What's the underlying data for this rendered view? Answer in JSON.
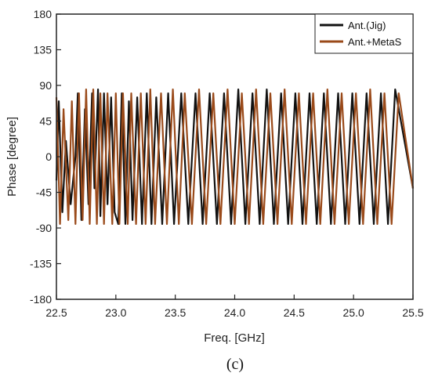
{
  "chart_data": {
    "type": "line",
    "xlabel": "Freq. [GHz]",
    "ylabel": "Phase [degree]",
    "caption": "(c)",
    "xlim": [
      22.5,
      25.5
    ],
    "ylim": [
      -180,
      180
    ],
    "xticks": [
      "22.5",
      "23.0",
      "23.5",
      "24.0",
      "24.5",
      "25.0",
      "25.5"
    ],
    "yticks": [
      "180",
      "135",
      "90",
      "45",
      "0",
      "-45",
      "-90",
      "-135",
      "-180"
    ],
    "grid": false,
    "legend_position": "top-right",
    "series": [
      {
        "name": "Ant.(Jig)",
        "color": "#111111",
        "x": [
          22.5,
          22.52,
          22.55,
          22.58,
          22.62,
          22.66,
          22.68,
          22.71,
          22.74,
          22.77,
          22.8,
          22.82,
          22.85,
          22.87,
          22.9,
          22.93,
          22.96,
          22.99,
          23.02,
          23.05,
          23.08,
          23.11,
          23.14,
          23.18,
          23.22,
          23.26,
          23.3,
          23.34,
          23.39,
          23.44,
          23.49,
          23.55,
          23.61,
          23.67,
          23.73,
          23.79,
          23.85,
          23.91,
          23.97,
          24.03,
          24.09,
          24.15,
          24.21,
          24.27,
          24.33,
          24.39,
          24.45,
          24.51,
          24.57,
          24.63,
          24.69,
          24.75,
          24.81,
          24.87,
          24.93,
          24.99,
          25.05,
          25.11,
          25.17,
          25.23,
          25.29,
          25.35,
          25.5
        ],
        "y": [
          -30,
          70,
          -70,
          20,
          -60,
          0,
          80,
          -80,
          60,
          -60,
          80,
          -40,
          85,
          -75,
          80,
          -60,
          75,
          -70,
          -85,
          80,
          -85,
          70,
          -80,
          75,
          -85,
          80,
          -85,
          75,
          -85,
          80,
          -85,
          80,
          -85,
          80,
          -85,
          80,
          -85,
          80,
          -85,
          85,
          -85,
          80,
          -85,
          85,
          -85,
          80,
          -85,
          80,
          -85,
          80,
          -85,
          80,
          -85,
          80,
          -85,
          80,
          -85,
          80,
          -85,
          80,
          -85,
          85,
          -40
        ]
      },
      {
        "name": "Ant.+MetaS",
        "color": "#9a4a1a",
        "x": [
          22.5,
          22.53,
          22.56,
          22.6,
          22.63,
          22.66,
          22.69,
          22.72,
          22.75,
          22.78,
          22.81,
          22.84,
          22.87,
          22.9,
          22.93,
          22.97,
          23.0,
          23.03,
          23.06,
          23.1,
          23.13,
          23.17,
          23.21,
          23.25,
          23.29,
          23.33,
          23.38,
          23.43,
          23.48,
          23.53,
          23.58,
          23.64,
          23.7,
          23.76,
          23.82,
          23.88,
          23.94,
          24.0,
          24.06,
          24.12,
          24.18,
          24.24,
          24.3,
          24.36,
          24.42,
          24.48,
          24.54,
          24.6,
          24.66,
          24.72,
          24.78,
          24.84,
          24.9,
          24.96,
          25.02,
          25.08,
          25.14,
          25.2,
          25.26,
          25.32,
          25.38,
          25.5
        ],
        "y": [
          75,
          -85,
          60,
          -80,
          70,
          -85,
          80,
          -80,
          85,
          -85,
          85,
          -85,
          80,
          -85,
          80,
          -85,
          80,
          -85,
          80,
          -85,
          80,
          -85,
          80,
          -85,
          85,
          -85,
          80,
          -85,
          85,
          -85,
          80,
          -85,
          85,
          -85,
          80,
          -85,
          85,
          -85,
          80,
          -85,
          85,
          -85,
          80,
          -85,
          85,
          -85,
          80,
          -85,
          80,
          -85,
          85,
          -85,
          80,
          -85,
          80,
          -85,
          85,
          -85,
          80,
          -85,
          80,
          -40
        ]
      }
    ]
  }
}
